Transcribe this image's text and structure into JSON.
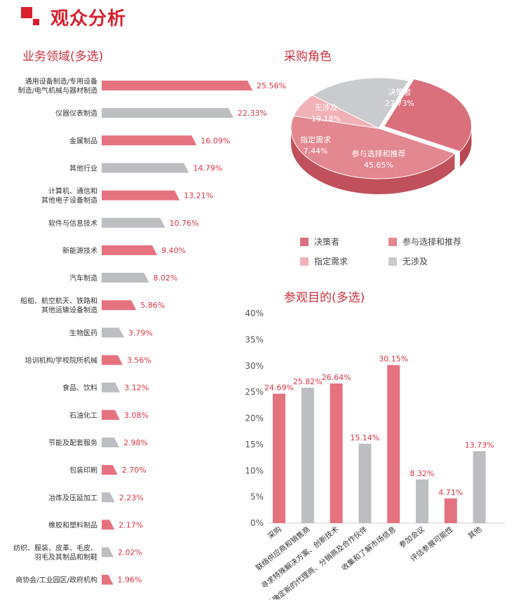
{
  "header": {
    "title": "观众分析"
  },
  "colors": {
    "red": "#e5727f",
    "gray": "#bdbec2",
    "dark_red": "#d23745",
    "pie_decision": "#d9707c",
    "pie_participate": "#e38790",
    "pie_specify": "#f0b1b7",
    "pie_none": "#c9cbce"
  },
  "chart_data": [
    {
      "type": "bar",
      "orientation": "horizontal",
      "title": "业务领域(多选)",
      "categories": [
        [
          "通用设备制造/专用设备",
          "制造/电气机械与器材制造"
        ],
        [
          "仪器仪表制造"
        ],
        [
          "金属制品"
        ],
        [
          "其他行业"
        ],
        [
          "计算机、通信和",
          "其他电子设备制造"
        ],
        [
          "软件与信息技术"
        ],
        [
          "新能源技术"
        ],
        [
          "汽车制造"
        ],
        [
          "船舶、航空航天、铁路和",
          "其他运输设备制造"
        ],
        [
          "生物医药"
        ],
        [
          "培训机构/学校院所机械"
        ],
        [
          "食品、饮料"
        ],
        [
          "石油化工"
        ],
        [
          "节能及配套服务"
        ],
        [
          "包装印刷"
        ],
        [
          "冶炼及压延加工"
        ],
        [
          "橡胶和塑料制品"
        ],
        [
          "纺织、服装、皮革、毛皮、",
          "羽毛及其制品和制鞋"
        ],
        [
          "商协会/工业园区/政府机构"
        ]
      ],
      "values": [
        25.56,
        22.33,
        16.09,
        14.79,
        13.21,
        10.76,
        9.4,
        8.02,
        5.86,
        3.79,
        3.56,
        3.12,
        3.08,
        2.98,
        2.7,
        2.23,
        2.17,
        2.02,
        1.96
      ],
      "value_labels": [
        "25.56%",
        "22.33%",
        "16.09%",
        "14.79%",
        "13.21%",
        "10.76%",
        "9.40%",
        "8.02%",
        "5.86%",
        "3.79%",
        "3.56%",
        "3.12%",
        "3.08%",
        "2.98%",
        "2.70%",
        "2.23%",
        "2.17%",
        "2.02%",
        "1.96%"
      ],
      "bar_colors": [
        "red",
        "gray"
      ]
    },
    {
      "type": "pie",
      "title": "采购角色",
      "slices": [
        {
          "label": "决策者",
          "value": 27.73,
          "value_label": "27.73%",
          "color": "pie_decision"
        },
        {
          "label": "参与选择和推荐",
          "value": 45.65,
          "value_label": "45.65%",
          "color": "pie_participate"
        },
        {
          "label": "指定需求",
          "value": 7.44,
          "value_label": "7.44%",
          "color": "pie_specify"
        },
        {
          "label": "无涉及",
          "value": 19.18,
          "value_label": "19.18%",
          "color": "pie_none"
        }
      ],
      "legend": [
        {
          "label": "决策者",
          "color": "pie_decision"
        },
        {
          "label": "参与选择和推荐",
          "color": "pie_participate"
        },
        {
          "label": "指定需求",
          "color": "pie_specify"
        },
        {
          "label": "无涉及",
          "color": "pie_none"
        }
      ],
      "legend_position": "bottom"
    },
    {
      "type": "bar",
      "orientation": "vertical",
      "title": "参观目的(多选)",
      "categories": [
        "采购",
        "联络供应商和销售商",
        "寻求特殊解决方案、创新技术",
        "寻求并确定新的代理商、分销商及合作伙伴",
        "收集和了解市场信息",
        "参加会议",
        "评估参展可能性",
        "其他"
      ],
      "values": [
        24.69,
        25.82,
        26.64,
        15.14,
        30.15,
        8.32,
        4.71,
        13.73
      ],
      "value_labels": [
        "24.69%",
        "25.82%",
        "26.64%",
        "15.14%",
        "30.15%",
        "8.32%",
        "4.71%",
        "13.73%"
      ],
      "bar_colors": [
        "red",
        "gray"
      ],
      "ylim": [
        0,
        40
      ],
      "yticks": [
        "0%",
        "5%",
        "10%",
        "15%",
        "20%",
        "25%",
        "30%",
        "35%",
        "40%"
      ],
      "grid": false
    }
  ]
}
